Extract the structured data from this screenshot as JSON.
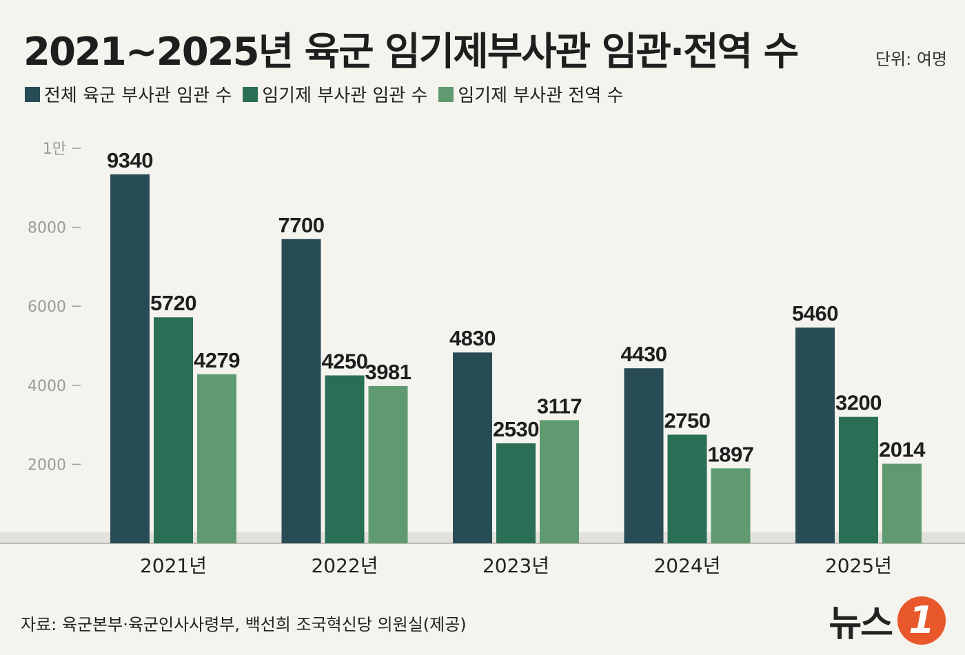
{
  "header": {
    "title": "2021~2025년 육군 임기제부사관 임관·전역 수",
    "unit": "단위: 여명"
  },
  "legend": {
    "items": [
      {
        "label": "전체 육군 부사관 임관 수",
        "color": "#284c55"
      },
      {
        "label": "임기제 부사관 임관 수",
        "color": "#2a6e55"
      },
      {
        "label": "임기제 부사관 전역 수",
        "color": "#5f9a70"
      }
    ]
  },
  "chart_data": {
    "type": "bar",
    "categories": [
      "2021년",
      "2022년",
      "2023년",
      "2024년",
      "2025년"
    ],
    "series": [
      {
        "name": "전체 육군 부사관 임관 수",
        "values": [
          9340,
          7700,
          4830,
          4430,
          5460
        ],
        "color": "#284c55"
      },
      {
        "name": "임기제 부사관 임관 수",
        "values": [
          5720,
          4250,
          2530,
          2750,
          3200
        ],
        "color": "#2a6e55"
      },
      {
        "name": "임기제 부사관 전역 수",
        "values": [
          4279,
          3981,
          3117,
          1897,
          2014
        ],
        "color": "#5f9a70"
      }
    ],
    "yticks": [
      {
        "value": 2000,
        "label": "2000"
      },
      {
        "value": 4000,
        "label": "4000"
      },
      {
        "value": 6000,
        "label": "6000"
      },
      {
        "value": 8000,
        "label": "8000"
      },
      {
        "value": 10000,
        "label": "1만"
      }
    ],
    "ylim": [
      0,
      10000
    ],
    "grid": false,
    "legend": "top-left"
  },
  "footer": {
    "source": "자료: 육군본부·육군인사사령부, 백선희 조국혁신당 의원실(제공)",
    "logo_text": "뉴스",
    "logo_mark": "1"
  }
}
